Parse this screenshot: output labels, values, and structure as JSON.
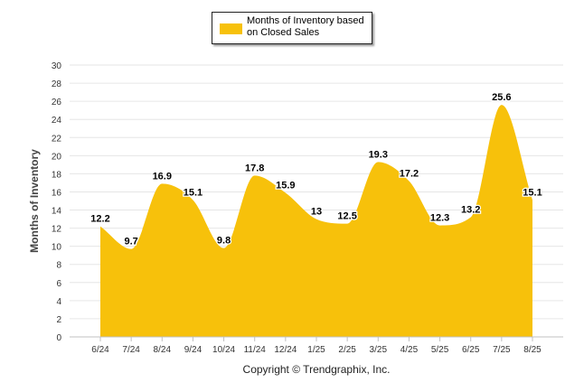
{
  "chart_data": {
    "type": "area",
    "legend": "Months of Inventory based on Closed Sales",
    "ylabel": "Months of Inventory",
    "xlabel": "",
    "categories": [
      "6/24",
      "7/24",
      "8/24",
      "9/24",
      "10/24",
      "11/24",
      "12/24",
      "1/25",
      "2/25",
      "3/25",
      "4/25",
      "5/25",
      "6/25",
      "7/25",
      "8/25"
    ],
    "series": [
      {
        "name": "Months of Inventory based on Closed Sales",
        "values": [
          12.2,
          9.7,
          16.9,
          15.1,
          9.8,
          17.8,
          15.9,
          13,
          12.5,
          19.3,
          17.2,
          12.3,
          13.2,
          25.6,
          15.1
        ],
        "labels": [
          "12.2",
          "9.7",
          "16.9",
          "15.1",
          "9.8",
          "17.8",
          "15.9",
          "13",
          "12.5",
          "19.3",
          "17.2",
          "12.3",
          "13.2",
          "25.6",
          "15.1"
        ]
      }
    ],
    "ylim": [
      0,
      30
    ],
    "yticks": [
      0,
      2,
      4,
      6,
      8,
      10,
      12,
      14,
      16,
      18,
      20,
      22,
      24,
      26,
      28,
      30
    ],
    "grid": true,
    "legend_placement": "top-center",
    "color": "#F7C10B"
  },
  "footer": "Copyright © Trendgraphix, Inc."
}
